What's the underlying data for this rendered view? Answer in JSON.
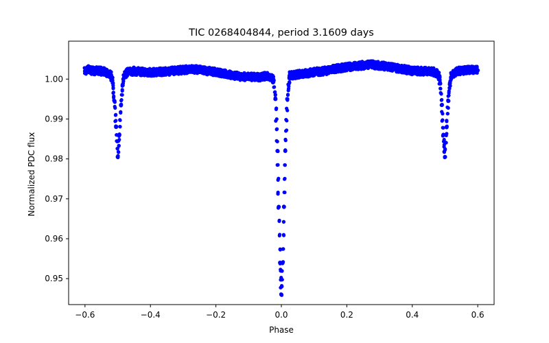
{
  "chart_data": {
    "type": "scatter",
    "title": "TIC 0268404844, period 3.1609 days",
    "xlabel": "Phase",
    "ylabel": "Normalized PDC flux",
    "xlim": [
      -0.65,
      0.65
    ],
    "ylim": [
      0.9435,
      1.0095
    ],
    "x_ticks": [
      -0.6,
      -0.4,
      -0.2,
      0.0,
      0.2,
      0.4,
      0.6
    ],
    "x_tick_labels": [
      "−0.6",
      "−0.4",
      "−0.2",
      "0.0",
      "0.2",
      "0.4",
      "0.6"
    ],
    "y_ticks": [
      0.95,
      0.96,
      0.97,
      0.98,
      0.99,
      1.0
    ],
    "y_tick_labels": [
      "0.95",
      "0.96",
      "0.97",
      "0.98",
      "0.99",
      "1.00"
    ],
    "grid": false,
    "legend": "none",
    "marker_color": "#0000ff",
    "series": [
      {
        "values": [
          [
            -0.6,
            1.002
          ],
          [
            -0.59,
            1.0025
          ],
          [
            -0.58,
            1.0022
          ],
          [
            -0.57,
            1.002
          ],
          [
            -0.56,
            1.0022
          ],
          [
            -0.55,
            1.002
          ],
          [
            -0.54,
            1.0018
          ],
          [
            -0.53,
            1.0015
          ],
          [
            -0.52,
            1.001
          ],
          [
            -0.515,
            0.999
          ],
          [
            -0.51,
            0.9945
          ],
          [
            -0.505,
            0.988
          ],
          [
            -0.5,
            0.9805
          ],
          [
            -0.495,
            0.986
          ],
          [
            -0.49,
            0.9935
          ],
          [
            -0.485,
            0.9985
          ],
          [
            -0.48,
            1.001
          ],
          [
            -0.47,
            1.0018
          ],
          [
            -0.45,
            1.002
          ],
          [
            -0.42,
            1.0018
          ],
          [
            -0.4,
            1.0017
          ],
          [
            -0.37,
            1.0018
          ],
          [
            -0.34,
            1.002
          ],
          [
            -0.3,
            1.0023
          ],
          [
            -0.27,
            1.0025
          ],
          [
            -0.24,
            1.0022
          ],
          [
            -0.2,
            1.0018
          ],
          [
            -0.17,
            1.0013
          ],
          [
            -0.14,
            1.0008
          ],
          [
            -0.1,
            1.0005
          ],
          [
            -0.07,
            1.0005
          ],
          [
            -0.04,
            1.0008
          ],
          [
            -0.025,
            1.0
          ],
          [
            -0.018,
            0.995
          ],
          [
            -0.012,
            0.982
          ],
          [
            -0.008,
            0.968
          ],
          [
            -0.004,
            0.954
          ],
          [
            0.0,
            0.946
          ],
          [
            0.004,
            0.954
          ],
          [
            0.008,
            0.968
          ],
          [
            0.012,
            0.982
          ],
          [
            0.018,
            0.995
          ],
          [
            0.025,
            1.0008
          ],
          [
            0.05,
            1.0012
          ],
          [
            0.08,
            1.0015
          ],
          [
            0.1,
            1.0018
          ],
          [
            0.13,
            1.002
          ],
          [
            0.16,
            1.0025
          ],
          [
            0.2,
            1.003
          ],
          [
            0.24,
            1.0034
          ],
          [
            0.28,
            1.0036
          ],
          [
            0.32,
            1.0032
          ],
          [
            0.36,
            1.0026
          ],
          [
            0.4,
            1.0021
          ],
          [
            0.43,
            1.002
          ],
          [
            0.46,
            1.002
          ],
          [
            0.48,
            1.0012
          ],
          [
            0.485,
            0.999
          ],
          [
            0.49,
            0.9935
          ],
          [
            0.495,
            0.986
          ],
          [
            0.5,
            0.9805
          ],
          [
            0.505,
            0.988
          ],
          [
            0.51,
            0.9945
          ],
          [
            0.515,
            0.999
          ],
          [
            0.52,
            1.0012
          ],
          [
            0.54,
            1.002
          ],
          [
            0.56,
            1.0022
          ],
          [
            0.58,
            1.0023
          ],
          [
            0.6,
            1.0022
          ]
        ]
      }
    ]
  }
}
